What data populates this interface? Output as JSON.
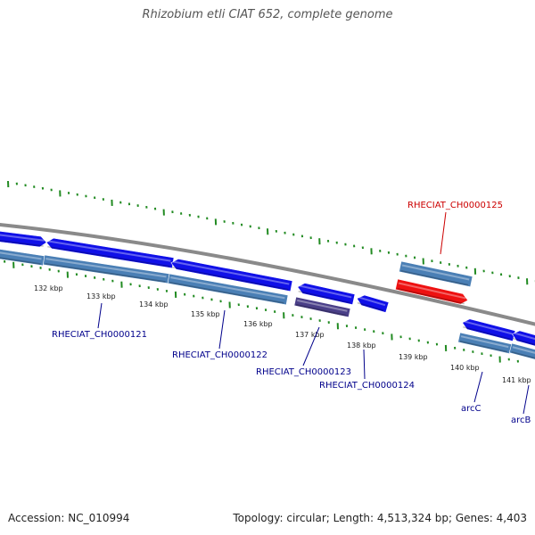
{
  "title": "Rhizobium etli CIAT 652, complete genome",
  "footer": {
    "accession": "Accession: NC_010994",
    "summary": "Topology: circular; Length: 4,513,324 bp; Genes: 4,403"
  },
  "colors": {
    "backbone": "#8a8a8a",
    "forward_gene": "#1010e8",
    "reverse_gene": "#4a7fb5",
    "highlight_gene": "#ee1111",
    "dark_gene": "#4a3f88",
    "tick": "#228b22",
    "gene_label": "#00008b",
    "highlight_label": "#cc0000"
  },
  "scale": {
    "labels": [
      "132 kbp",
      "133 kbp",
      "134 kbp",
      "135 kbp",
      "136 kbp",
      "137 kbp",
      "138 kbp",
      "139 kbp",
      "140 kbp",
      "141 kbp"
    ]
  },
  "genes": [
    {
      "name": "RHECIAT_CH0000121",
      "color": "gene_label"
    },
    {
      "name": "RHECIAT_CH0000122",
      "color": "gene_label"
    },
    {
      "name": "RHECIAT_CH0000123",
      "color": "gene_label"
    },
    {
      "name": "RHECIAT_CH0000124",
      "color": "gene_label"
    },
    {
      "name": "RHECIAT_CH0000125",
      "color": "highlight_label"
    },
    {
      "name": "arcC",
      "color": "gene_label"
    },
    {
      "name": "arcB",
      "color": "gene_label"
    }
  ]
}
